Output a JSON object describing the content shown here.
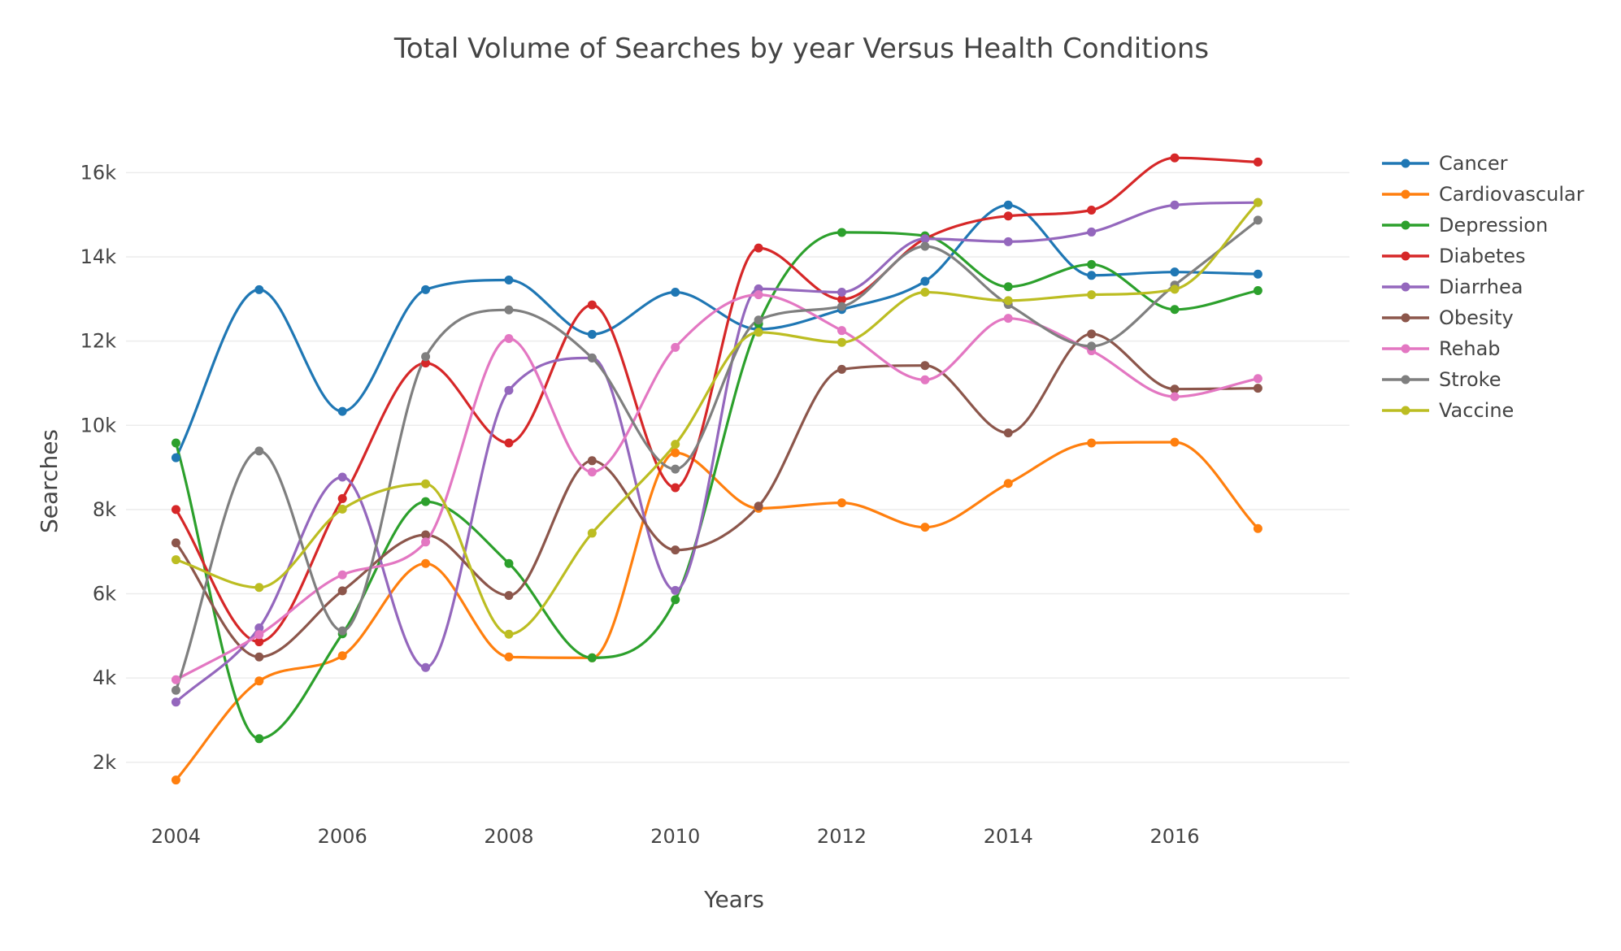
{
  "chart_data": {
    "type": "line",
    "title": "Total Volume of Searches by year Versus Health Conditions",
    "xlabel": "Years",
    "ylabel": "Searches",
    "x": [
      2004,
      2005,
      2006,
      2007,
      2008,
      2009,
      2010,
      2011,
      2012,
      2013,
      2014,
      2015,
      2016,
      2017
    ],
    "xlim": [
      2003.4,
      2018.1
    ],
    "ylim": [
      800,
      17300
    ],
    "x_ticks": [
      2004,
      2006,
      2008,
      2010,
      2012,
      2014,
      2016
    ],
    "x_tick_labels": [
      "2004",
      "2006",
      "2008",
      "2010",
      "2012",
      "2014",
      "2016"
    ],
    "y_ticks": [
      2000,
      4000,
      6000,
      8000,
      10000,
      12000,
      14000,
      16000
    ],
    "y_tick_labels": [
      "2k",
      "4k",
      "6k",
      "8k",
      "10k",
      "12k",
      "14k",
      "16k"
    ],
    "grid": true,
    "legend_position": "top-right",
    "series": [
      {
        "name": "Cancer",
        "color": "#1f77b4",
        "values": [
          9230,
          13220,
          10330,
          13220,
          13450,
          12160,
          13160,
          12280,
          12750,
          13420,
          15230,
          13560,
          13640,
          13590
        ]
      },
      {
        "name": "Cardiovascular",
        "color": "#ff7f0e",
        "values": [
          1580,
          3930,
          4530,
          6720,
          4500,
          4480,
          9350,
          8030,
          8160,
          7580,
          8620,
          9580,
          9600,
          7550
        ]
      },
      {
        "name": "Depression",
        "color": "#2ca02c",
        "values": [
          9580,
          2560,
          5050,
          8190,
          6720,
          4480,
          5860,
          12410,
          14580,
          14500,
          13290,
          13820,
          12750,
          13200
        ]
      },
      {
        "name": "Diabetes",
        "color": "#d62728",
        "values": [
          8000,
          4860,
          8260,
          11480,
          9580,
          12860,
          8520,
          14210,
          12990,
          14430,
          14970,
          15110,
          16350,
          16250
        ]
      },
      {
        "name": "Diarrhea",
        "color": "#9467bd",
        "values": [
          3430,
          5190,
          8770,
          4250,
          10830,
          11600,
          6080,
          13240,
          13160,
          14430,
          14360,
          14590,
          15230,
          15290
        ]
      },
      {
        "name": "Obesity",
        "color": "#8c564b",
        "values": [
          7210,
          4500,
          6070,
          7400,
          5960,
          9160,
          7040,
          8080,
          11330,
          11420,
          9820,
          12170,
          10860,
          10880
        ]
      },
      {
        "name": "Rehab",
        "color": "#e377c2",
        "values": [
          3960,
          5030,
          6450,
          7230,
          12060,
          8890,
          11850,
          13100,
          12250,
          11080,
          12540,
          11770,
          10680,
          11110
        ]
      },
      {
        "name": "Stroke",
        "color": "#7f7f7f",
        "values": [
          3710,
          9390,
          5120,
          11630,
          12740,
          11600,
          8960,
          12500,
          12820,
          14250,
          12870,
          11880,
          13330,
          14870
        ]
      },
      {
        "name": "Vaccine",
        "color": "#bcbd22",
        "values": [
          6810,
          6150,
          8010,
          8610,
          5040,
          7440,
          9550,
          12210,
          11970,
          13160,
          12960,
          13100,
          13230,
          15290
        ]
      }
    ]
  }
}
